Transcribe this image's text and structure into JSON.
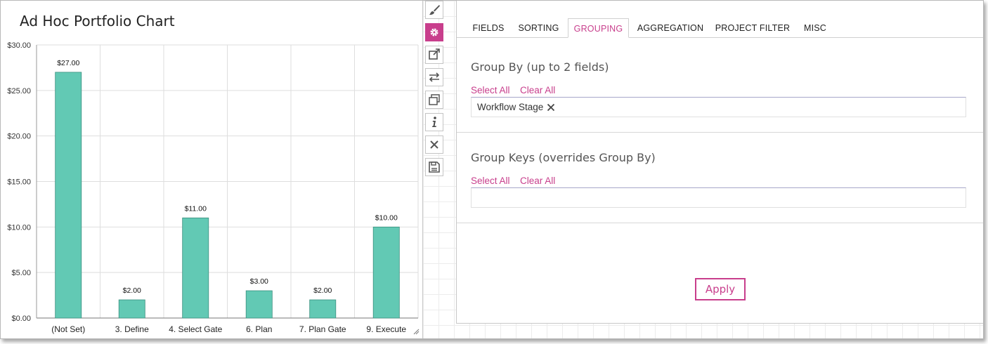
{
  "chart": {
    "title": "Ad Hoc Portfolio Chart"
  },
  "chart_data": {
    "type": "bar",
    "title": "Ad Hoc Portfolio Chart",
    "categories": [
      "(Not Set)",
      "3. Define",
      "4. Select Gate",
      "6. Plan",
      "7. Plan Gate",
      "9. Execute"
    ],
    "values": [
      27,
      2,
      11,
      3,
      2,
      10
    ],
    "value_labels": [
      "$27.00",
      "$2.00",
      "$11.00",
      "$3.00",
      "$2.00",
      "$10.00"
    ],
    "ylim": [
      0,
      30
    ],
    "y_ticks": [
      0,
      5,
      10,
      15,
      20,
      25,
      30
    ],
    "y_tick_labels": [
      "$0.00",
      "$5.00",
      "$10.00",
      "$15.00",
      "$20.00",
      "$25.00",
      "$30.00"
    ],
    "xlabel": "",
    "ylabel": "",
    "grid": true,
    "bar_color": "#62c9b4",
    "bar_edge_color": "#3a8f7e"
  },
  "toolbar": {
    "items": [
      {
        "icon": "paintbrush-icon"
      },
      {
        "icon": "gear-icon",
        "active": true
      },
      {
        "icon": "external-link-icon"
      },
      {
        "icon": "swap-arrows-icon"
      },
      {
        "icon": "windows-icon"
      },
      {
        "icon": "info-icon"
      },
      {
        "icon": "close-icon"
      },
      {
        "icon": "save-icon"
      }
    ]
  },
  "tabs": [
    {
      "label": "FIELDS"
    },
    {
      "label": "SORTING"
    },
    {
      "label": "GROUPING",
      "active": true
    },
    {
      "label": "AGGREGATION"
    },
    {
      "label": "PROJECT FILTER"
    },
    {
      "label": "MISC"
    }
  ],
  "group_by": {
    "title": "Group By (up to 2 fields)",
    "select_all": "Select All",
    "clear_all": "Clear All",
    "selected": [
      "Workflow Stage"
    ]
  },
  "group_keys": {
    "title": "Group Keys (overrides Group By)",
    "select_all": "Select All",
    "clear_all": "Clear All"
  },
  "apply_label": "Apply",
  "colors": {
    "accent": "#c83e8c",
    "bar": "#62c9b4"
  }
}
